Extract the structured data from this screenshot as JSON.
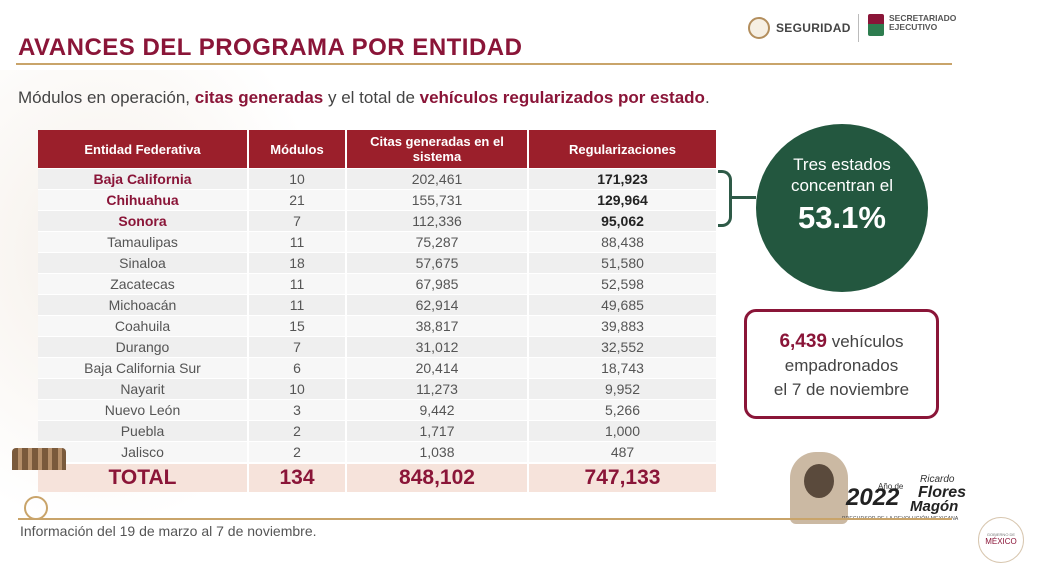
{
  "header": {
    "title": "AVANCES DEL PROGRAMA POR ENTIDAD",
    "logo_left_text": "SEGURIDAD",
    "logo_right_text": "SECRETARIADO EJECUTIVO"
  },
  "subtitle": {
    "part1": "Módulos en operación, ",
    "part2": "citas generadas",
    "part3": " y el total de ",
    "part4": "vehículos regularizados por estado",
    "part5": "."
  },
  "table": {
    "headers": [
      "Entidad Federativa",
      "Módulos",
      "Citas generadas en el sistema",
      "Regularizaciones"
    ],
    "rows": [
      {
        "entidad": "Baja California",
        "modulos": "10",
        "citas": "202,461",
        "reg": "171,923"
      },
      {
        "entidad": "Chihuahua",
        "modulos": "21",
        "citas": "155,731",
        "reg": "129,964"
      },
      {
        "entidad": "Sonora",
        "modulos": "7",
        "citas": "112,336",
        "reg": "95,062"
      },
      {
        "entidad": "Tamaulipas",
        "modulos": "11",
        "citas": "75,287",
        "reg": "88,438"
      },
      {
        "entidad": "Sinaloa",
        "modulos": "18",
        "citas": "57,675",
        "reg": "51,580"
      },
      {
        "entidad": "Zacatecas",
        "modulos": "11",
        "citas": "67,985",
        "reg": "52,598"
      },
      {
        "entidad": "Michoacán",
        "modulos": "11",
        "citas": "62,914",
        "reg": "49,685"
      },
      {
        "entidad": "Coahuila",
        "modulos": "15",
        "citas": "38,817",
        "reg": "39,883"
      },
      {
        "entidad": "Durango",
        "modulos": "7",
        "citas": "31,012",
        "reg": "32,552"
      },
      {
        "entidad": "Baja California Sur",
        "modulos": "6",
        "citas": "20,414",
        "reg": "18,743"
      },
      {
        "entidad": "Nayarit",
        "modulos": "10",
        "citas": "11,273",
        "reg": "9,952"
      },
      {
        "entidad": "Nuevo León",
        "modulos": "3",
        "citas": "9,442",
        "reg": "5,266"
      },
      {
        "entidad": "Puebla",
        "modulos": "2",
        "citas": "1,717",
        "reg": "1,000"
      },
      {
        "entidad": "Jalisco",
        "modulos": "2",
        "citas": "1,038",
        "reg": "487"
      }
    ],
    "total": {
      "label": "TOTAL",
      "modulos": "134",
      "citas": "848,102",
      "reg": "747,133"
    }
  },
  "callout_circle": {
    "text": "Tres estados concentran el",
    "percent": "53.1%"
  },
  "callout_box": {
    "number": "6,439",
    "text1": " vehículos",
    "text2": "empadronados",
    "text3": "el 7 de noviembre"
  },
  "footer": {
    "note": "Información del 19 de marzo al 7 de noviembre.",
    "logo_year": "2022",
    "logo_anio": "Año de",
    "logo_ricardo": "Ricardo",
    "logo_flores": "Flores",
    "logo_magon": "Magón",
    "logo_precursor": "PRECURSOR DE LA REVOLUCIÓN MEXICANA",
    "gob_mx": "MÉXICO",
    "gob_label": "GOBIERNO DE"
  },
  "colors": {
    "brand": "#8a1538",
    "header_bg": "#9b1f2b",
    "accent_green": "#23573f",
    "gold": "#c9a46a"
  }
}
